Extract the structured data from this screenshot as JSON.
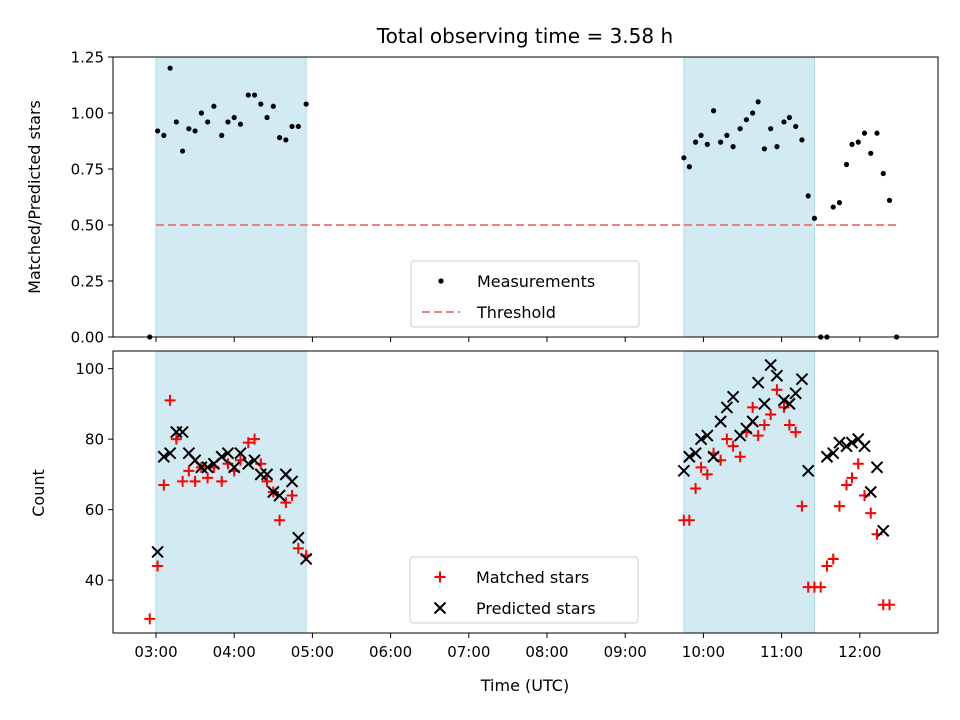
{
  "chart_data": [
    {
      "type": "scatter",
      "title": "Total observing time = 3.58 h",
      "ylabel": "Matched/Predicted stars",
      "xlabel": "",
      "ylim": [
        0,
        1.25
      ],
      "yticks": [
        0,
        0.25,
        0.5,
        0.75,
        1.0,
        1.25
      ],
      "ytick_labels": [
        "0.00",
        "0.25",
        "0.50",
        "0.75",
        "1.00",
        "1.25"
      ],
      "x_unit": "hours UTC",
      "xlim": [
        2.45,
        13.0
      ],
      "shaded_intervals": [
        [
          3.0,
          4.92
        ],
        [
          9.75,
          11.42
        ]
      ],
      "shade_color": "#add8e6",
      "legend_position": "lower-center",
      "legend": [
        "Measurements",
        "Threshold"
      ],
      "threshold": {
        "name": "Threshold",
        "value": 0.5,
        "x": [
          3.0,
          12.5
        ],
        "color": "#f08080"
      },
      "series": [
        {
          "name": "Measurements",
          "color": "#000000",
          "marker": "dot",
          "points": [
            [
              2.92,
              0.0
            ],
            [
              3.02,
              0.92
            ],
            [
              3.1,
              0.9
            ],
            [
              3.18,
              1.2
            ],
            [
              3.26,
              0.96
            ],
            [
              3.34,
              0.83
            ],
            [
              3.42,
              0.93
            ],
            [
              3.5,
              0.92
            ],
            [
              3.58,
              1.0
            ],
            [
              3.66,
              0.96
            ],
            [
              3.74,
              1.03
            ],
            [
              3.84,
              0.9
            ],
            [
              3.92,
              0.96
            ],
            [
              4.0,
              0.98
            ],
            [
              4.08,
              0.95
            ],
            [
              4.18,
              1.08
            ],
            [
              4.26,
              1.08
            ],
            [
              4.34,
              1.04
            ],
            [
              4.42,
              0.98
            ],
            [
              4.5,
              1.03
            ],
            [
              4.58,
              0.89
            ],
            [
              4.66,
              0.88
            ],
            [
              4.74,
              0.94
            ],
            [
              4.82,
              0.94
            ],
            [
              4.92,
              1.04
            ],
            [
              9.75,
              0.8
            ],
            [
              9.82,
              0.76
            ],
            [
              9.9,
              0.87
            ],
            [
              9.97,
              0.9
            ],
            [
              10.05,
              0.86
            ],
            [
              10.13,
              1.01
            ],
            [
              10.22,
              0.87
            ],
            [
              10.3,
              0.9
            ],
            [
              10.38,
              0.85
            ],
            [
              10.47,
              0.93
            ],
            [
              10.55,
              0.97
            ],
            [
              10.63,
              1.0
            ],
            [
              10.7,
              1.05
            ],
            [
              10.78,
              0.84
            ],
            [
              10.86,
              0.93
            ],
            [
              10.94,
              0.85
            ],
            [
              11.03,
              0.96
            ],
            [
              11.1,
              0.98
            ],
            [
              11.18,
              0.94
            ],
            [
              11.26,
              0.88
            ],
            [
              11.34,
              0.63
            ],
            [
              11.42,
              0.53
            ],
            [
              11.5,
              0.0
            ],
            [
              11.58,
              0.0
            ],
            [
              11.66,
              0.58
            ],
            [
              11.74,
              0.6
            ],
            [
              11.83,
              0.77
            ],
            [
              11.9,
              0.86
            ],
            [
              11.98,
              0.87
            ],
            [
              12.06,
              0.91
            ],
            [
              12.14,
              0.82
            ],
            [
              12.22,
              0.91
            ],
            [
              12.3,
              0.73
            ],
            [
              12.38,
              0.61
            ],
            [
              12.47,
              0.0
            ]
          ]
        }
      ]
    },
    {
      "type": "scatter",
      "title": "",
      "ylabel": "Count",
      "xlabel": "Time (UTC)",
      "ylim": [
        25,
        105
      ],
      "yticks": [
        40,
        60,
        80,
        100
      ],
      "ytick_labels": [
        "40",
        "60",
        "80",
        "100"
      ],
      "x_unit": "hours UTC",
      "xlim": [
        2.45,
        13.0
      ],
      "xticks": [
        3,
        4,
        5,
        6,
        7,
        8,
        9,
        10,
        11,
        12
      ],
      "xtick_labels": [
        "03:00",
        "04:00",
        "05:00",
        "06:00",
        "07:00",
        "08:00",
        "09:00",
        "10:00",
        "11:00",
        "12:00"
      ],
      "shaded_intervals": [
        [
          3.0,
          4.92
        ],
        [
          9.75,
          11.42
        ]
      ],
      "shade_color": "#add8e6",
      "legend_position": "lower-center",
      "legend": [
        "Matched stars",
        "Predicted stars"
      ],
      "series": [
        {
          "name": "Matched stars",
          "color": "#ff0000",
          "marker": "plus",
          "points": [
            [
              2.92,
              29
            ],
            [
              3.02,
              44
            ],
            [
              3.1,
              67
            ],
            [
              3.18,
              91
            ],
            [
              3.26,
              80
            ],
            [
              3.34,
              68
            ],
            [
              3.42,
              71
            ],
            [
              3.5,
              68
            ],
            [
              3.58,
              72
            ],
            [
              3.66,
              69
            ],
            [
              3.74,
              72
            ],
            [
              3.84,
              68
            ],
            [
              3.92,
              73
            ],
            [
              4.0,
              71
            ],
            [
              4.08,
              74
            ],
            [
              4.18,
              79
            ],
            [
              4.26,
              80
            ],
            [
              4.34,
              73
            ],
            [
              4.42,
              68
            ],
            [
              4.5,
              65
            ],
            [
              4.58,
              57
            ],
            [
              4.66,
              62
            ],
            [
              4.74,
              64
            ],
            [
              4.82,
              49
            ],
            [
              4.92,
              47
            ],
            [
              9.75,
              57
            ],
            [
              9.82,
              57
            ],
            [
              9.9,
              66
            ],
            [
              9.97,
              72
            ],
            [
              10.05,
              70
            ],
            [
              10.13,
              76
            ],
            [
              10.22,
              74
            ],
            [
              10.3,
              80
            ],
            [
              10.38,
              78
            ],
            [
              10.47,
              75
            ],
            [
              10.55,
              82
            ],
            [
              10.63,
              89
            ],
            [
              10.7,
              81
            ],
            [
              10.78,
              84
            ],
            [
              10.86,
              87
            ],
            [
              10.94,
              94
            ],
            [
              11.03,
              89
            ],
            [
              11.1,
              84
            ],
            [
              11.18,
              82
            ],
            [
              11.26,
              61
            ],
            [
              11.34,
              38
            ],
            [
              11.42,
              38
            ],
            [
              11.5,
              38
            ],
            [
              11.58,
              44
            ],
            [
              11.66,
              46
            ],
            [
              11.74,
              61
            ],
            [
              11.83,
              67
            ],
            [
              11.9,
              69
            ],
            [
              11.98,
              73
            ],
            [
              12.06,
              64
            ],
            [
              12.14,
              59
            ],
            [
              12.22,
              53
            ],
            [
              12.3,
              33
            ],
            [
              12.38,
              33
            ]
          ]
        },
        {
          "name": "Predicted stars",
          "color": "#000000",
          "marker": "x",
          "points": [
            [
              3.02,
              48
            ],
            [
              3.1,
              75
            ],
            [
              3.18,
              76
            ],
            [
              3.26,
              82
            ],
            [
              3.34,
              82
            ],
            [
              3.42,
              76
            ],
            [
              3.5,
              74
            ],
            [
              3.58,
              72
            ],
            [
              3.66,
              72
            ],
            [
              3.74,
              73
            ],
            [
              3.84,
              75
            ],
            [
              3.92,
              76
            ],
            [
              4.0,
              72
            ],
            [
              4.08,
              76
            ],
            [
              4.18,
              73
            ],
            [
              4.26,
              74
            ],
            [
              4.34,
              70
            ],
            [
              4.42,
              70
            ],
            [
              4.5,
              65
            ],
            [
              4.58,
              64
            ],
            [
              4.66,
              70
            ],
            [
              4.74,
              68
            ],
            [
              4.82,
              52
            ],
            [
              4.92,
              46
            ],
            [
              9.75,
              71
            ],
            [
              9.82,
              75
            ],
            [
              9.9,
              76
            ],
            [
              9.97,
              80
            ],
            [
              10.05,
              81
            ],
            [
              10.13,
              75
            ],
            [
              10.22,
              85
            ],
            [
              10.3,
              89
            ],
            [
              10.38,
              92
            ],
            [
              10.47,
              81
            ],
            [
              10.55,
              83
            ],
            [
              10.63,
              85
            ],
            [
              10.7,
              96
            ],
            [
              10.78,
              90
            ],
            [
              10.86,
              101
            ],
            [
              10.94,
              98
            ],
            [
              11.03,
              91
            ],
            [
              11.1,
              90
            ],
            [
              11.18,
              93
            ],
            [
              11.26,
              97
            ],
            [
              11.34,
              71
            ],
            [
              11.58,
              75
            ],
            [
              11.66,
              76
            ],
            [
              11.74,
              79
            ],
            [
              11.83,
              78
            ],
            [
              11.9,
              79
            ],
            [
              11.98,
              80
            ],
            [
              12.06,
              78
            ],
            [
              12.14,
              65
            ],
            [
              12.22,
              72
            ],
            [
              12.3,
              54
            ]
          ]
        }
      ]
    }
  ]
}
